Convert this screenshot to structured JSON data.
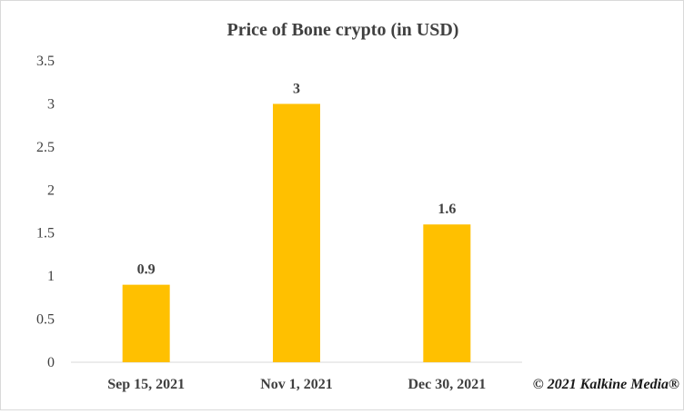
{
  "chart_data": {
    "type": "bar",
    "title": "Price of Bone crypto (in USD)",
    "categories": [
      "Sep 15, 2021",
      "Nov 1, 2021",
      "Dec 30, 2021"
    ],
    "values": [
      0.9,
      3,
      1.6
    ],
    "data_labels": [
      "0.9",
      "3",
      "1.6"
    ],
    "y_ticks": [
      "0",
      "0.5",
      "1",
      "1.5",
      "2",
      "2.5",
      "3",
      "3.5"
    ],
    "ylim": [
      0,
      3.5
    ],
    "xlabel": "",
    "ylabel": "",
    "grid": false,
    "legend": "none",
    "bar_color": "#FFC000"
  },
  "watermark": "© 2021 Kalkine Media®"
}
